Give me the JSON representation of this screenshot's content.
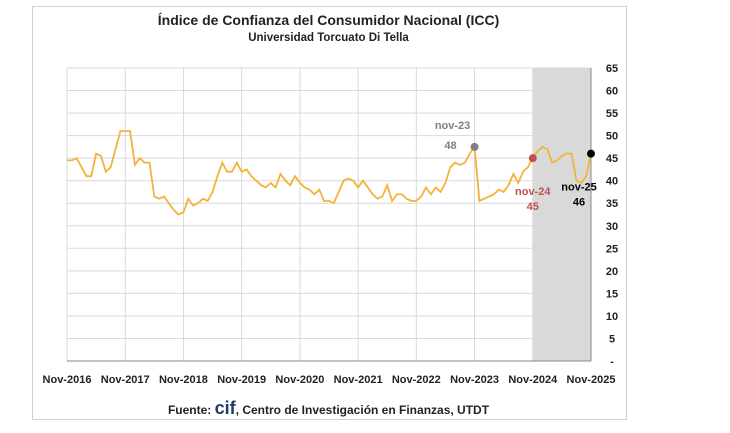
{
  "chart_data": {
    "type": "line",
    "title": "Índice de Confianza del Consumidor Nacional (ICC)",
    "subtitle": "Universidad Torcuato Di Tella",
    "x_start": "Nov-2016",
    "x_end": "Nov-2025",
    "frequency": "monthly",
    "x_tick_labels": [
      "Nov-2016",
      "Nov-2017",
      "Nov-2018",
      "Nov-2019",
      "Nov-2020",
      "Nov-2021",
      "Nov-2022",
      "Nov-2023",
      "Nov-2024",
      "Nov-2025"
    ],
    "y_tick_labels": [
      "-",
      "5",
      "10",
      "15",
      "20",
      "25",
      "30",
      "35",
      "40",
      "45",
      "50",
      "55",
      "60",
      "65"
    ],
    "ylim": [
      0,
      65
    ],
    "y_axis_side": "right",
    "grid": true,
    "values": [
      44.5,
      44.5,
      45,
      43,
      41,
      41,
      46,
      45.5,
      42,
      43,
      47,
      51,
      51,
      51,
      43.5,
      45,
      44,
      44,
      36.5,
      36,
      36.5,
      35,
      33.5,
      32.5,
      33,
      36,
      34.5,
      35,
      36,
      35.5,
      37.5,
      41,
      44,
      42,
      42,
      44,
      42,
      42.5,
      41,
      40,
      39,
      38.5,
      39.5,
      38.5,
      41.5,
      40,
      39,
      41,
      39.5,
      38.5,
      38,
      37,
      38,
      35.5,
      35.5,
      35,
      37.5,
      40,
      40.5,
      40,
      38.5,
      40,
      38.5,
      37,
      36,
      36.5,
      39,
      35.5,
      37,
      37,
      36,
      35.5,
      35.5,
      36.5,
      38.5,
      37,
      38.5,
      37.5,
      39.5,
      43,
      44,
      43.5,
      44,
      46,
      47.5,
      35.5,
      36,
      36.5,
      37,
      38,
      37.5,
      39,
      41.5,
      39.5,
      42,
      43,
      45,
      46.5,
      47.5,
      47,
      44,
      44.5,
      45.5,
      46,
      46,
      40,
      39.5,
      41,
      46
    ],
    "line_color": "#f4b23a",
    "shaded_range": [
      "Nov-2024",
      "Nov-2025"
    ],
    "shade_color": "#d9d9d9",
    "annotations": [
      {
        "month_index": 84,
        "label": "nov-23",
        "value_label": "48",
        "color": "#808080"
      },
      {
        "month_index": 96,
        "label": "nov-24",
        "value_label": "45",
        "color": "#c0504d"
      },
      {
        "month_index": 108,
        "label": "nov-25",
        "value_label": "46",
        "color": "#000000"
      }
    ]
  },
  "source": {
    "prefix": "Fuente: ",
    "logo": "cif",
    "rest": ", Centro de Investigación en Finanzas, UTDT"
  }
}
